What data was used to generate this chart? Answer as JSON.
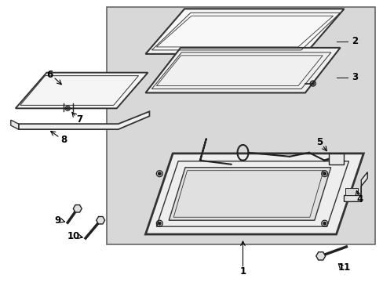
{
  "bg_color": "#ffffff",
  "box_bg": "#d8d8d8",
  "box_border": "#444444",
  "line_color": "#222222",
  "fig_width": 4.89,
  "fig_height": 3.6,
  "dpi": 100
}
